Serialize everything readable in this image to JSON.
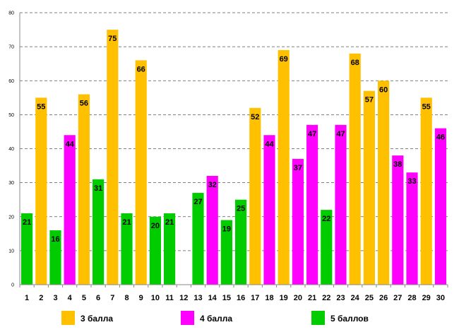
{
  "chart_data": {
    "type": "bar",
    "title": "",
    "xlabel": "",
    "ylabel": "",
    "ylim": [
      0,
      80
    ],
    "yticks": [
      "0",
      "10",
      "20",
      "30",
      "40",
      "50",
      "60",
      "70",
      "80"
    ],
    "grid": "horizontal dashed",
    "categories": [
      "1",
      "2",
      "3",
      "4",
      "5",
      "6",
      "7",
      "8",
      "9",
      "10",
      "11",
      "12",
      "13",
      "14",
      "15",
      "16",
      "17",
      "18",
      "19",
      "20",
      "21",
      "22",
      "23",
      "24",
      "25",
      "26",
      "27",
      "28",
      "29",
      "30"
    ],
    "values": [
      21,
      55,
      16,
      44,
      56,
      31,
      75,
      21,
      66,
      20,
      21,
      null,
      27,
      32,
      19,
      25,
      52,
      44,
      69,
      37,
      47,
      22,
      47,
      68,
      57,
      60,
      38,
      33,
      55,
      46
    ],
    "value_labels": [
      "21",
      "55",
      "16",
      "44",
      "56",
      "31",
      "75",
      "21",
      "66",
      "20",
      "21",
      "",
      "27",
      "32",
      "19",
      "25",
      "52",
      "44",
      "69",
      "37",
      "47",
      "22",
      "47",
      "68",
      "57",
      "60",
      "38",
      "33",
      "55",
      "46"
    ],
    "groups": [
      "g5",
      "g3",
      "g5",
      "g4",
      "g3",
      "g5",
      "g3",
      "g5",
      "g3",
      "g5",
      "g5",
      "",
      "g5",
      "g4",
      "g5",
      "g5",
      "g3",
      "g4",
      "g3",
      "g4",
      "g4",
      "g5",
      "g4",
      "g3",
      "g3",
      "g3",
      "g4",
      "g4",
      "g3",
      "g4"
    ],
    "legend": [
      {
        "key": "g3",
        "label": "3 балла",
        "color": "#FFC000"
      },
      {
        "key": "g4",
        "label": "4 балла",
        "color": "#FF00FF"
      },
      {
        "key": "g5",
        "label": "5 баллов",
        "color": "#00CC00"
      }
    ],
    "legend_position": "bottom"
  }
}
